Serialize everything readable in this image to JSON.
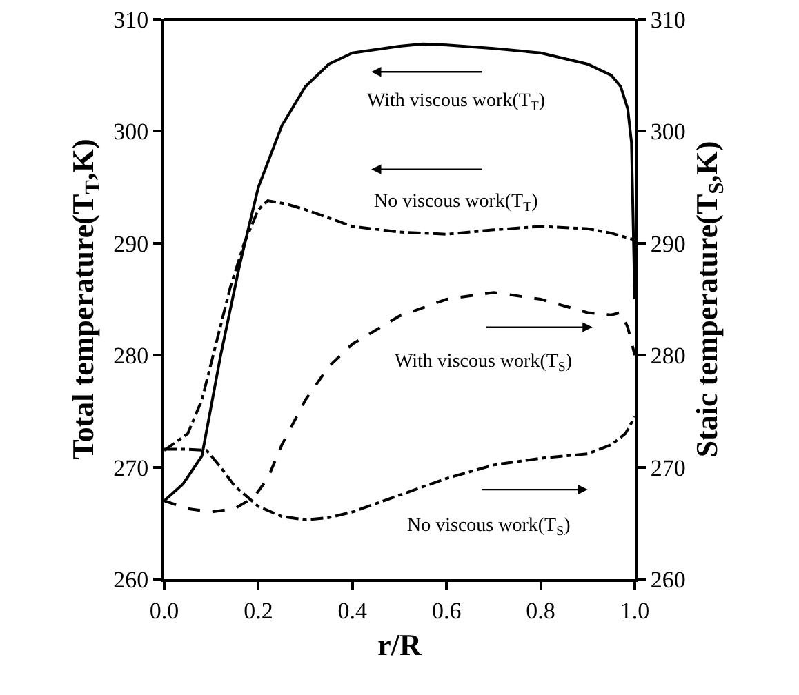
{
  "chart_data": {
    "type": "line",
    "xlabel": "r/R",
    "ylabel": "Total temperature(T$_{T}$,K)",
    "y2label": "Staic temperature(T$_{S}$,K)",
    "xlim": [
      0,
      1
    ],
    "xticks": [
      {
        "value": 0,
        "label": "0.0"
      },
      {
        "value": 0.2,
        "label": "0.2"
      },
      {
        "value": 0.4,
        "label": "0.4"
      },
      {
        "value": 0.6,
        "label": "0.6"
      },
      {
        "value": 0.8,
        "label": "0.8"
      },
      {
        "value": 1,
        "label": "1.0"
      }
    ],
    "ylim": [
      260,
      310
    ],
    "yticks": [
      260,
      270,
      280,
      290,
      300,
      310
    ],
    "y2lim": [
      260,
      310
    ],
    "y2ticks": [
      260,
      270,
      280,
      290,
      300,
      310
    ],
    "grid": false,
    "marker": "none",
    "series": [
      {
        "color": "#000000",
        "line_style": "solid",
        "x": [
          0,
          0.04,
          0.08,
          0.12,
          0.16,
          0.2,
          0.25,
          0.3,
          0.35,
          0.4,
          0.5,
          0.55,
          0.6,
          0.7,
          0.8,
          0.9,
          0.95,
          0.97,
          0.985,
          0.993,
          1.0
        ],
        "values": [
          267,
          268.5,
          271,
          280,
          288,
          295,
          300.5,
          304,
          306,
          307,
          307.6,
          307.8,
          307.7,
          307.4,
          307,
          306,
          305,
          304,
          302,
          299,
          285
        ]
      },
      {
        "color": "#000000",
        "line_style": "dashdot",
        "x": [
          0,
          0.05,
          0.08,
          0.11,
          0.14,
          0.17,
          0.2,
          0.22,
          0.26,
          0.3,
          0.4,
          0.5,
          0.6,
          0.7,
          0.8,
          0.9,
          0.95,
          1.0
        ],
        "values": [
          271.5,
          273,
          276,
          281,
          286,
          290,
          293,
          293.8,
          293.5,
          293,
          291.5,
          291,
          290.8,
          291.2,
          291.5,
          291.3,
          290.9,
          290.3
        ]
      },
      {
        "color": "#000000",
        "line_style": "dashed",
        "axis": "y2",
        "x": [
          0,
          0.05,
          0.1,
          0.15,
          0.19,
          0.22,
          0.25,
          0.3,
          0.35,
          0.4,
          0.5,
          0.6,
          0.7,
          0.8,
          0.9,
          0.95,
          0.97,
          0.985,
          1.0
        ],
        "values": [
          267,
          266.3,
          266,
          266.3,
          267.3,
          269,
          272,
          276,
          279,
          281,
          283.5,
          285,
          285.6,
          285,
          283.8,
          283.6,
          283.8,
          282.5,
          280
        ]
      },
      {
        "color": "#000000",
        "line_style": "dashdot",
        "axis": "y2",
        "x": [
          0,
          0.05,
          0.09,
          0.12,
          0.15,
          0.2,
          0.25,
          0.3,
          0.35,
          0.4,
          0.5,
          0.6,
          0.7,
          0.8,
          0.9,
          0.95,
          0.98,
          1.0
        ],
        "values": [
          271.6,
          271.6,
          271.5,
          270,
          268.3,
          266.5,
          265.6,
          265.3,
          265.5,
          266,
          267.5,
          269,
          270.2,
          270.8,
          271.2,
          272,
          273,
          274.5
        ]
      }
    ],
    "annotations": [
      "With viscous work(T$_{T}$)",
      "No viscous work(T$_{T}$)",
      "With viscous work(T$_{S}$)",
      "No viscous work(T$_{S}$)"
    ]
  }
}
